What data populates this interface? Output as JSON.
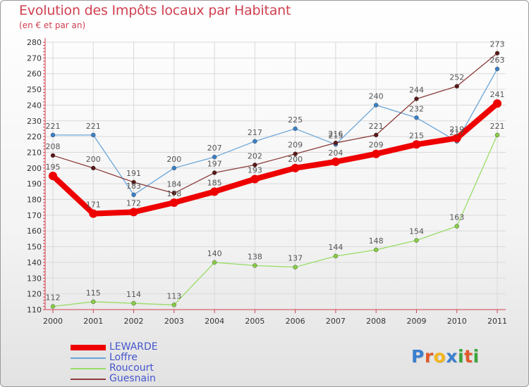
{
  "title": "Evolution des Impôts locaux par Habitant",
  "subtitle": "(en € et par an)",
  "logo": {
    "text": "Proxiti",
    "colors": [
      "#3a7fd0",
      "#e05a2a",
      "#f2b51b",
      "#3a7fd0",
      "#3aa63a",
      "#e05a2a",
      "#3aa63a"
    ]
  },
  "colors": {
    "title": "#d04050",
    "axis": "#d04050",
    "grid": "#d9d9d9",
    "label": "#555555"
  },
  "chart_data": {
    "type": "line",
    "x": [
      "2000",
      "2001",
      "2002",
      "2003",
      "2004",
      "2005",
      "2006",
      "2007",
      "2008",
      "2009",
      "2010",
      "2011"
    ],
    "yticks": [
      110,
      120,
      130,
      140,
      150,
      160,
      170,
      180,
      190,
      200,
      210,
      220,
      230,
      240,
      250,
      260,
      270,
      280
    ],
    "ylim": [
      110,
      280
    ],
    "grid": true,
    "legend_position": "bottom-left",
    "series": [
      {
        "name": "Roucourt",
        "color": "#99dd66",
        "marker": "#88cc44",
        "values": [
          112,
          115,
          114,
          113,
          140,
          138,
          137,
          144,
          148,
          154,
          163,
          221
        ],
        "thick": false
      },
      {
        "name": "Loffre",
        "color": "#6aa5d8",
        "marker": "#3a80c6",
        "values": [
          221,
          221,
          183,
          200,
          207,
          217,
          225,
          215,
          240,
          232,
          217,
          263
        ],
        "thick": false
      },
      {
        "name": "Guesnain",
        "color": "#8b3a3a",
        "marker": "#5a1818",
        "values": [
          208,
          200,
          191,
          184,
          197,
          202,
          209,
          216,
          221,
          244,
          252,
          273
        ],
        "thick": false
      },
      {
        "name": "LEWARDE",
        "color": "#ee0000",
        "marker": "#ee0000",
        "values": [
          195,
          171,
          172,
          178,
          185,
          193,
          200,
          204,
          209,
          215,
          219,
          241
        ],
        "thick": true
      }
    ],
    "legend_order": [
      "LEWARDE",
      "Loffre",
      "Roucourt",
      "Guesnain"
    ],
    "legend_label_colors": {
      "LEWARDE": "#4455cc",
      "Loffre": "#4455cc",
      "Roucourt": "#4455cc",
      "Guesnain": "#4455cc"
    }
  }
}
